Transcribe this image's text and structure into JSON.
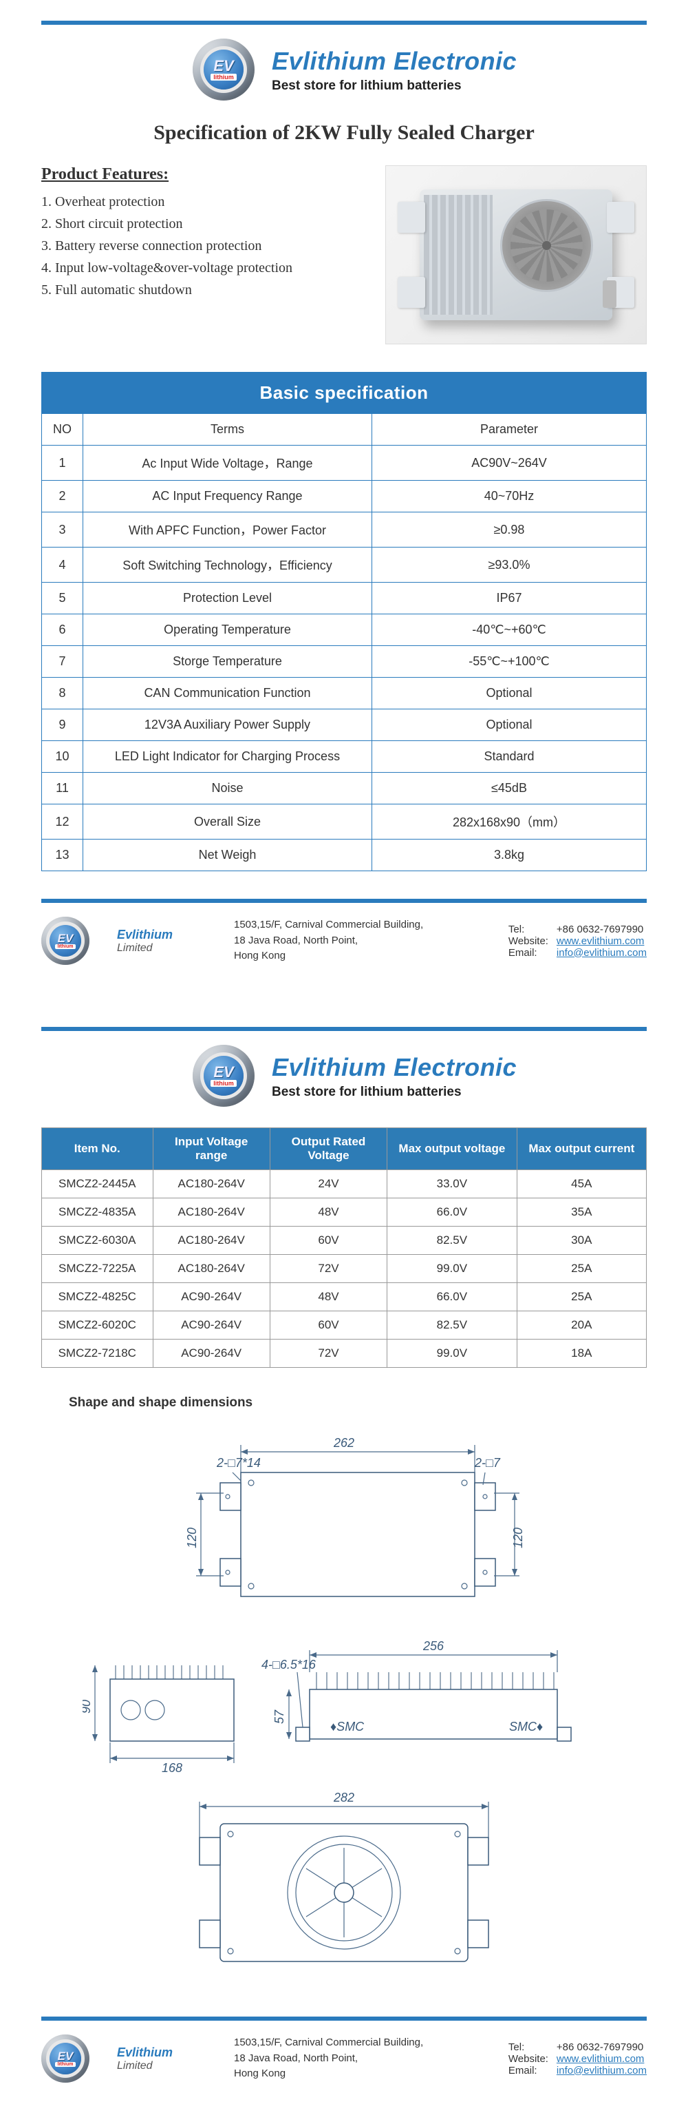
{
  "brand": {
    "title": "Evlithium Electronic",
    "subtitle": "Best store for lithium batteries",
    "logo_ev": "EV",
    "logo_li": "lithium"
  },
  "doc_title": "Specification of 2KW Fully Sealed Charger",
  "features_title": "Product Features:",
  "features": [
    "1.  Overheat protection",
    "2.  Short circuit protection",
    "3.  Battery reverse connection protection",
    "4.  Input low-voltage&over-voltage protection",
    "5.  Full automatic shutdown"
  ],
  "spec_table": {
    "title": "Basic specification",
    "head": {
      "no": "NO",
      "terms": "Terms",
      "param": "Parameter"
    },
    "rows": [
      {
        "no": "1",
        "term": "Ac Input Wide Voltage，Range",
        "param": "AC90V~264V"
      },
      {
        "no": "2",
        "term": "AC Input Frequency Range",
        "param": "40~70Hz"
      },
      {
        "no": "3",
        "term": "With APFC Function，Power Factor",
        "param": "≥0.98"
      },
      {
        "no": "4",
        "term": "Soft Switching Technology，Efficiency",
        "param": "≥93.0%"
      },
      {
        "no": "5",
        "term": "Protection Level",
        "param": "IP67"
      },
      {
        "no": "6",
        "term": "Operating Temperature",
        "param": "-40℃~+60℃"
      },
      {
        "no": "7",
        "term": "Storge Temperature",
        "param": "-55℃~+100℃"
      },
      {
        "no": "8",
        "term": "CAN Communication Function",
        "param": "Optional"
      },
      {
        "no": "9",
        "term": "12V3A Auxiliary Power Supply",
        "param": "Optional"
      },
      {
        "no": "10",
        "term": "LED Light Indicator for Charging Process",
        "param": "Standard"
      },
      {
        "no": "11",
        "term": "Noise",
        "param": "≤45dB"
      },
      {
        "no": "12",
        "term": "Overall Size",
        "param": "282x168x90（mm）"
      },
      {
        "no": "13",
        "term": "Net Weigh",
        "param": "3.8kg"
      }
    ]
  },
  "models_table": {
    "head": [
      "Item No.",
      "Input Voltage range",
      "Output Rated Voltage",
      "Max output voltage",
      "Max output current"
    ],
    "rows": [
      [
        "SMCZ2-2445A",
        "AC180-264V",
        "24V",
        "33.0V",
        "45A"
      ],
      [
        "SMCZ2-4835A",
        "AC180-264V",
        "48V",
        "66.0V",
        "35A"
      ],
      [
        "SMCZ2-6030A",
        "AC180-264V",
        "60V",
        "82.5V",
        "30A"
      ],
      [
        "SMCZ2-7225A",
        "AC180-264V",
        "72V",
        "99.0V",
        "25A"
      ],
      [
        "SMCZ2-4825C",
        "AC90-264V",
        "48V",
        "66.0V",
        "25A"
      ],
      [
        "SMCZ2-6020C",
        "AC90-264V",
        "60V",
        "82.5V",
        "20A"
      ],
      [
        "SMCZ2-7218C",
        "AC90-264V",
        "72V",
        "99.0V",
        "18A"
      ]
    ]
  },
  "shape_title": "Shape and shape dimensions",
  "dimensions": {
    "top_width": "262",
    "top_height_left": "120",
    "top_height_right": "120",
    "callout_tl": "2-□7*14",
    "callout_tr": "2-□7",
    "side_call": "4-□6.5*16",
    "front_width": "256",
    "front_height": "57",
    "side_height": "90",
    "side_width": "168",
    "bottom_width": "282"
  },
  "footer": {
    "brand": "Evlithium",
    "limited": "Limited",
    "addr1": "1503,15/F, Carnival Commercial Building,",
    "addr2": "18 Java Road, North Point,",
    "addr3": "Hong Kong",
    "tel_lbl": "Tel:",
    "tel": "+86  0632-7697990",
    "web_lbl": "Website:",
    "web": "www.evlithium.com",
    "email_lbl": "Email:",
    "email": "info@evlithium.com"
  }
}
